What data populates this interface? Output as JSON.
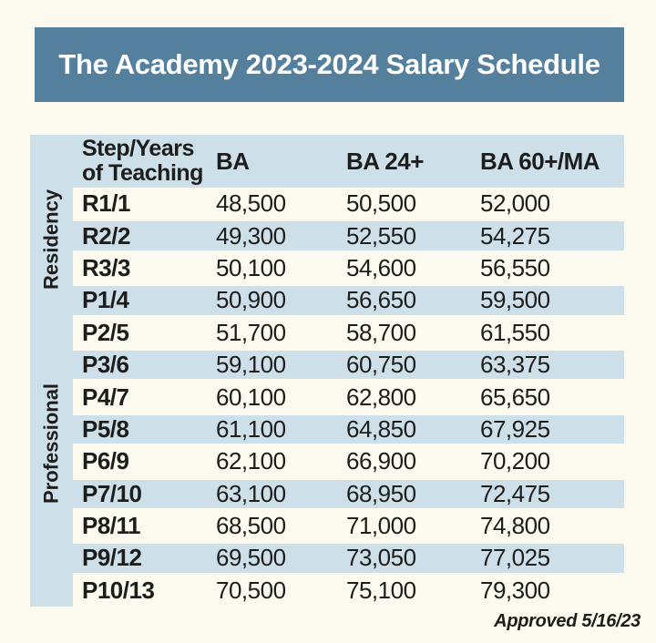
{
  "banner": {
    "title": "The Academy 2023-2024 Salary Schedule"
  },
  "table": {
    "header": {
      "step_col": "Step/Years of Teaching",
      "ba": "BA",
      "ba24": "BA 24+",
      "ba60": "BA 60+/MA"
    },
    "groups": {
      "residency": "Residency",
      "professional": "Professional"
    },
    "rows": [
      {
        "step": "R1/1",
        "ba": "48,500",
        "ba24": "50,500",
        "ba60": "52,000"
      },
      {
        "step": "R2/2",
        "ba": "49,300",
        "ba24": "52,550",
        "ba60": "54,275"
      },
      {
        "step": "R3/3",
        "ba": "50,100",
        "ba24": "54,600",
        "ba60": "56,550"
      },
      {
        "step": "P1/4",
        "ba": "50,900",
        "ba24": "56,650",
        "ba60": "59,500"
      },
      {
        "step": "P2/5",
        "ba": "51,700",
        "ba24": "58,700",
        "ba60": "61,550"
      },
      {
        "step": "P3/6",
        "ba": "59,100",
        "ba24": "60,750",
        "ba60": "63,375"
      },
      {
        "step": "P4/7",
        "ba": "60,100",
        "ba24": "62,800",
        "ba60": "65,650"
      },
      {
        "step": "P5/8",
        "ba": "61,100",
        "ba24": "64,850",
        "ba60": "67,925"
      },
      {
        "step": "P6/9",
        "ba": "62,100",
        "ba24": "66,900",
        "ba60": "70,200"
      },
      {
        "step": "P7/10",
        "ba": "63,100",
        "ba24": "68,950",
        "ba60": "72,475"
      },
      {
        "step": "P8/11",
        "ba": "68,500",
        "ba24": "71,000",
        "ba60": "74,800"
      },
      {
        "step": "P9/12",
        "ba": "69,500",
        "ba24": "73,050",
        "ba60": "77,025"
      },
      {
        "step": "P10/13",
        "ba": "70,500",
        "ba24": "75,100",
        "ba60": "79,300"
      }
    ]
  },
  "footer": {
    "approved": "Approved 5/16/23"
  },
  "colors": {
    "banner_blue": "#54809e",
    "band_blue": "#cde0ea",
    "background_cream": "#fcf9ef",
    "text_dark": "#1d1d1b",
    "banner_text": "#ffffff"
  }
}
